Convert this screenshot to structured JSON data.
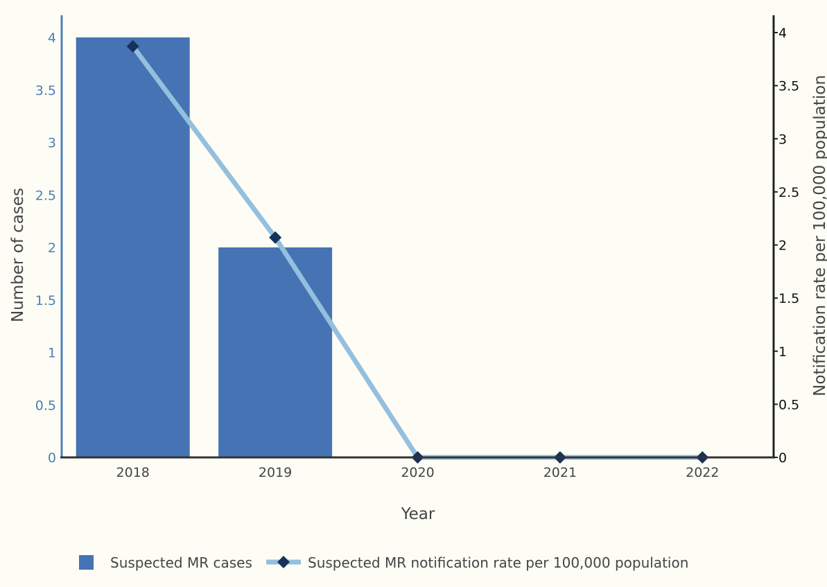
{
  "chart_data": {
    "type": "bar",
    "title": "",
    "categories": [
      "2018",
      "2019",
      "2020",
      "2021",
      "2022"
    ],
    "xlabel": "Year",
    "ylabel_left": "Number of cases",
    "ylabel_right": "Notification rate per 100,000 population",
    "ylim_left": [
      0,
      4
    ],
    "ylim_right": [
      0,
      4
    ],
    "yticks_left": [
      "0",
      "0.5",
      "1",
      "1.5",
      "2",
      "2.5",
      "3",
      "3.5",
      "4"
    ],
    "yticks_right": [
      "0",
      "0.5",
      "1",
      "1.5",
      "2",
      "2.5",
      "3",
      "3.5",
      "4"
    ],
    "grid": false,
    "legend_position": "bottom",
    "series": [
      {
        "name": "Suspected MR cases",
        "type": "bar",
        "axis": "left",
        "values": [
          4,
          2,
          0,
          0,
          0
        ],
        "color": "#4573b4"
      },
      {
        "name": "Suspected MR notification rate per 100,000 population",
        "type": "line",
        "axis": "right",
        "values": [
          3.87,
          2.07,
          0,
          0,
          0
        ],
        "line_color": "#94bfdd",
        "marker": "diamond",
        "marker_color": "#16325c"
      }
    ],
    "colors": {
      "background": "#fdfdf5",
      "left_axis": "#4d7eb9",
      "right_axis": "#222222",
      "x_axis": "#333333"
    }
  }
}
